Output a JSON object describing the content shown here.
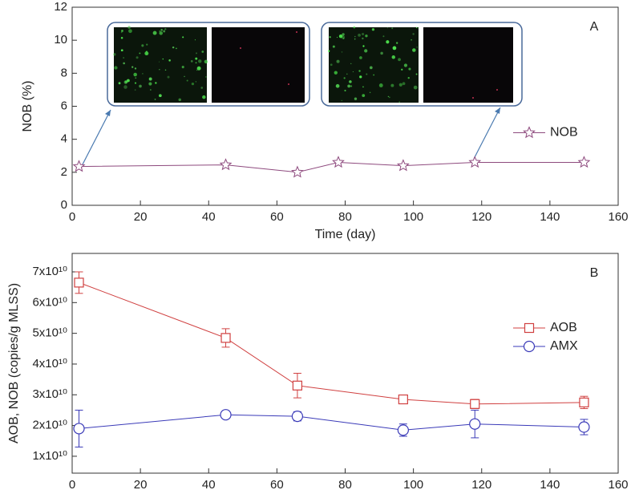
{
  "chart_data": [
    {
      "type": "line",
      "annotation": "A",
      "x_label": "Time (day)",
      "y_label": "NOB (%)",
      "x": [
        2,
        45,
        66,
        78,
        97,
        118,
        150
      ],
      "series": [
        {
          "name": "NOB",
          "color": "#8e4a7e",
          "marker": "star",
          "values": [
            2.35,
            2.45,
            2.0,
            2.6,
            2.4,
            2.6,
            2.6
          ]
        }
      ],
      "xlim": [
        0,
        160
      ],
      "xticks": [
        0,
        20,
        40,
        60,
        80,
        100,
        120,
        140,
        160
      ],
      "ylim": [
        0,
        12
      ],
      "yticks": [
        0,
        2,
        4,
        6,
        8,
        10,
        12
      ],
      "legend": "right"
    },
    {
      "type": "line",
      "annotation": "B",
      "x_label": "Time (day)",
      "y_label": "AOB, NOB (copies/g MLSS)",
      "x": [
        2,
        45,
        66,
        97,
        118,
        150
      ],
      "series": [
        {
          "name": "AOB",
          "color": "#d04040",
          "marker": "square",
          "values": [
            66500000000,
            48500000000,
            33000000000,
            28500000000,
            27000000000,
            27500000000
          ],
          "errors": [
            3500000000,
            3000000000,
            4000000000,
            1000000000,
            1500000000,
            2000000000
          ]
        },
        {
          "name": "AMX",
          "color": "#3a3ab8",
          "marker": "circle",
          "values": [
            19000000000,
            23500000000,
            23000000000,
            18500000000,
            20500000000,
            19500000000
          ],
          "errors": [
            6000000000,
            1000000000,
            1500000000,
            2000000000,
            4500000000,
            2500000000
          ]
        }
      ],
      "xlim": [
        0,
        160
      ],
      "xticks": [
        0,
        20,
        40,
        60,
        80,
        100,
        120,
        140,
        160
      ],
      "ylim": [
        4500000000,
        76000000000
      ],
      "yticks": [
        {
          "value": 10000000000,
          "label": "1x10¹⁰"
        },
        {
          "value": 20000000000,
          "label": "2x10¹⁰"
        },
        {
          "value": 30000000000,
          "label": "3x10¹⁰"
        },
        {
          "value": 40000000000,
          "label": "4x10¹⁰"
        },
        {
          "value": 50000000000,
          "label": "5x10¹⁰"
        },
        {
          "value": 60000000000,
          "label": "6x10¹⁰"
        },
        {
          "value": 70000000000,
          "label": "7x10¹⁰"
        }
      ],
      "legend": "upper right"
    }
  ]
}
